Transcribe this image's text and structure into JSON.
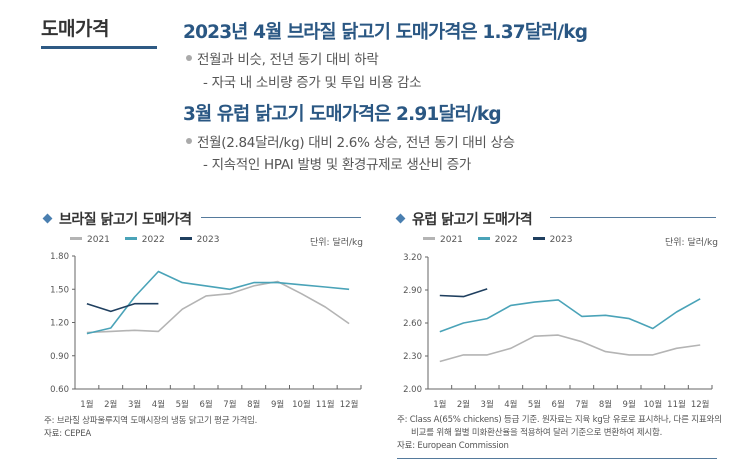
{
  "section": {
    "label": "도매가격"
  },
  "summary": {
    "headline1": "2023년 4월 브라질 닭고기 도매가격은 1.37달러/kg",
    "bullet1": "전월과 비슷, 전년 동기 대비 하락",
    "sub1": "- 자국 내 소비량 증가 및 투입 비용 감소",
    "headline2": "3월 유럽 닭고기 도매가격은 2.91달러/kg",
    "bullet2": "전월(2.84달러/kg) 대비 2.6% 상승, 전년 동기 대비 상승",
    "sub2": "- 지속적인 HPAI 발병 및 환경규제로 생산비 증가"
  },
  "colors": {
    "y2021": "#b4b4b4",
    "y2022": "#4aa3b8",
    "y2023": "#1f3f5f",
    "accent": "#2a5783"
  },
  "charts": [
    {
      "title": "브라질 닭고기 도매가격",
      "unit": "단위: 달러/kg",
      "note": "주: 브라질 상파울루지역 도매시장의 냉동 닭고기 평균 가격임.",
      "source": "자료: CEPEA"
    },
    {
      "title": "유럽 닭고기 도매가격",
      "unit": "단위: 달러/kg",
      "note1": "주: Class A(65% chickens) 등급 기준. 원자료는 지육 kg당 유로로 표시하나, 다른 지표와의",
      "note2": "비교를 위해 월별 미화환산율을 적용하여 달러 기준으로 변환하여 제시함.",
      "source": "자료: European Commission"
    }
  ],
  "chart_data": [
    {
      "type": "line",
      "title": "브라질 닭고기 도매가격",
      "xlabel": "",
      "ylabel": "단위: 달러/kg",
      "categories": [
        "1월",
        "2월",
        "3월",
        "4월",
        "5월",
        "6월",
        "7월",
        "8월",
        "9월",
        "10월",
        "11월",
        "12월"
      ],
      "ylim": [
        0.6,
        1.8
      ],
      "yticks": [
        "0.60",
        "0.90",
        "1.20",
        "1.50",
        "1.80"
      ],
      "ytick_values": [
        0.6,
        0.9,
        1.2,
        1.5,
        1.8
      ],
      "legend": "top-left",
      "grid": false,
      "series": [
        {
          "name": "2021",
          "values": [
            1.11,
            1.12,
            1.13,
            1.12,
            1.32,
            1.44,
            1.46,
            1.53,
            1.57,
            1.46,
            1.34,
            1.19
          ]
        },
        {
          "name": "2022",
          "values": [
            1.1,
            1.15,
            1.43,
            1.66,
            1.56,
            1.53,
            1.5,
            1.56,
            1.56,
            1.54,
            1.52,
            1.5
          ]
        },
        {
          "name": "2023",
          "values": [
            1.37,
            1.3,
            1.37,
            1.37
          ]
        }
      ]
    },
    {
      "type": "line",
      "title": "유럽 닭고기 도매가격",
      "xlabel": "",
      "ylabel": "단위: 달러/kg",
      "categories": [
        "1월",
        "2월",
        "3월",
        "4월",
        "5월",
        "6월",
        "7월",
        "8월",
        "9월",
        "10월",
        "11월",
        "12월"
      ],
      "ylim": [
        2.0,
        3.2
      ],
      "yticks": [
        "2.00",
        "2.30",
        "2.60",
        "2.90",
        "3.20"
      ],
      "ytick_values": [
        2.0,
        2.3,
        2.6,
        2.9,
        3.2
      ],
      "legend": "top-left",
      "grid": false,
      "series": [
        {
          "name": "2021",
          "values": [
            2.25,
            2.31,
            2.31,
            2.37,
            2.48,
            2.49,
            2.43,
            2.34,
            2.31,
            2.31,
            2.37,
            2.4
          ]
        },
        {
          "name": "2022",
          "values": [
            2.52,
            2.6,
            2.64,
            2.76,
            2.79,
            2.81,
            2.66,
            2.67,
            2.64,
            2.55,
            2.7,
            2.82
          ]
        },
        {
          "name": "2023",
          "values": [
            2.85,
            2.84,
            2.91
          ]
        }
      ]
    }
  ]
}
